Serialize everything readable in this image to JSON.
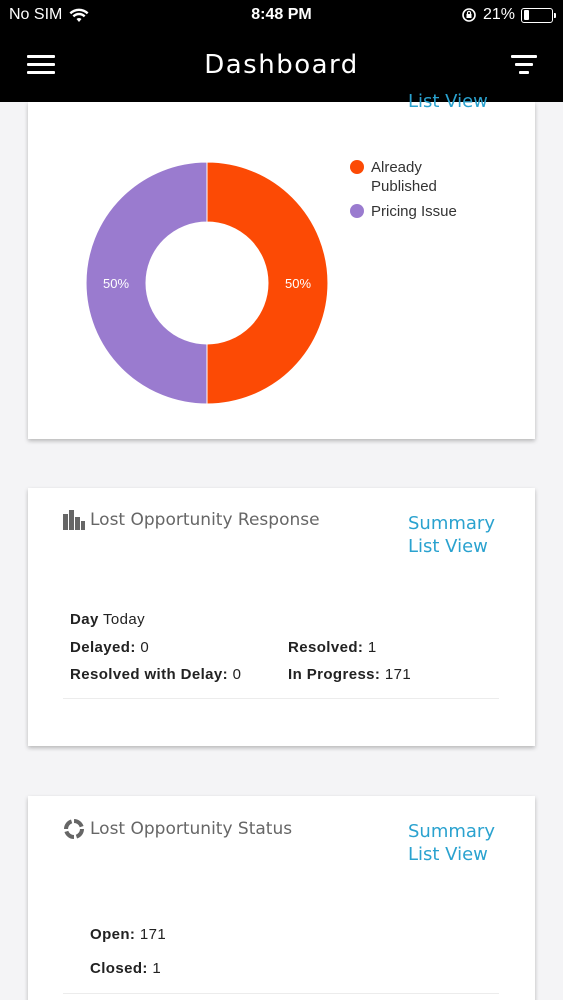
{
  "status_bar": {
    "carrier": "No SIM",
    "time": "8:48 PM",
    "battery": "21%",
    "battery_level": 0.21
  },
  "header": {
    "title": "Dashboard",
    "menu_icon": "hamburger-menu-icon",
    "filter_icon": "filter-icon"
  },
  "chart_card": {
    "top_link_partial": "List View",
    "chart_data": {
      "type": "pie",
      "categories": [
        "Already Published",
        "Pricing Issue"
      ],
      "values": [
        50,
        50
      ],
      "labels": [
        "50%",
        "50%"
      ],
      "colors": [
        "#fc4a05",
        "#9a7bcf"
      ],
      "donut": true,
      "legend_position": "top-right"
    },
    "legend": [
      {
        "label_line1": "Already",
        "label_line2": "Published",
        "color": "#fc4a05"
      },
      {
        "label_line1": "Pricing Issue",
        "color": "#9a7bcf"
      }
    ]
  },
  "response_card": {
    "title": "Lost Opportunity Response",
    "icon": "bar-chart-icon",
    "summary_link": "Summary",
    "list_link": "List View",
    "day_label": "Day",
    "day_value": "Today",
    "delayed_label": "Delayed:",
    "delayed_value": "0",
    "resolved_label": "Resolved:",
    "resolved_value": "1",
    "resolved_delay_label": "Resolved with Delay:",
    "resolved_delay_value": "0",
    "in_progress_label": "In Progress:",
    "in_progress_value": "171"
  },
  "status_card": {
    "title": "Lost Opportunity Status",
    "icon": "ring-chart-icon",
    "summary_link": "Summary",
    "list_link": "List View",
    "open_label": "Open:",
    "open_value": "171",
    "closed_label": "Closed:",
    "closed_value": "1"
  }
}
